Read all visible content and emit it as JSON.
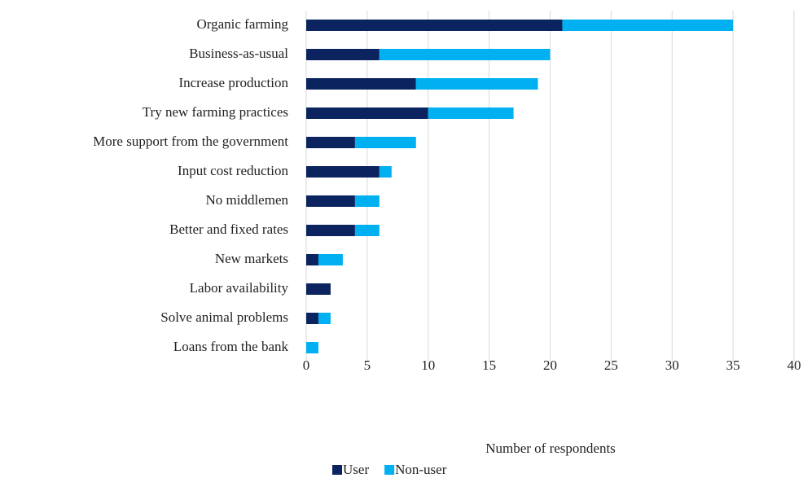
{
  "chart_data": {
    "type": "bar",
    "orientation": "horizontal",
    "stacked": true,
    "x_label": "Number of respondents",
    "categories": [
      "Organic farming",
      "Business-as-usual",
      "Increase production",
      "Try new farming practices",
      "More support from the government",
      "Input cost reduction",
      "No middlemen",
      "Better and fixed rates",
      "New markets",
      "Labor availability",
      "Solve animal problems",
      "Loans from the bank"
    ],
    "series": [
      {
        "name": "User",
        "color": "#0b2460",
        "values": [
          21,
          6,
          9,
          10,
          4,
          6,
          4,
          4,
          1,
          2,
          1,
          0
        ]
      },
      {
        "name": "Non-user",
        "color": "#00b0f0",
        "values": [
          14,
          14,
          10,
          7,
          5,
          1,
          2,
          2,
          2,
          0,
          1,
          1
        ]
      }
    ],
    "xlim": [
      0,
      40
    ],
    "xticks": [
      0,
      5,
      10,
      15,
      20,
      25,
      30,
      35,
      40
    ],
    "grid": true,
    "legend": "bottom"
  }
}
